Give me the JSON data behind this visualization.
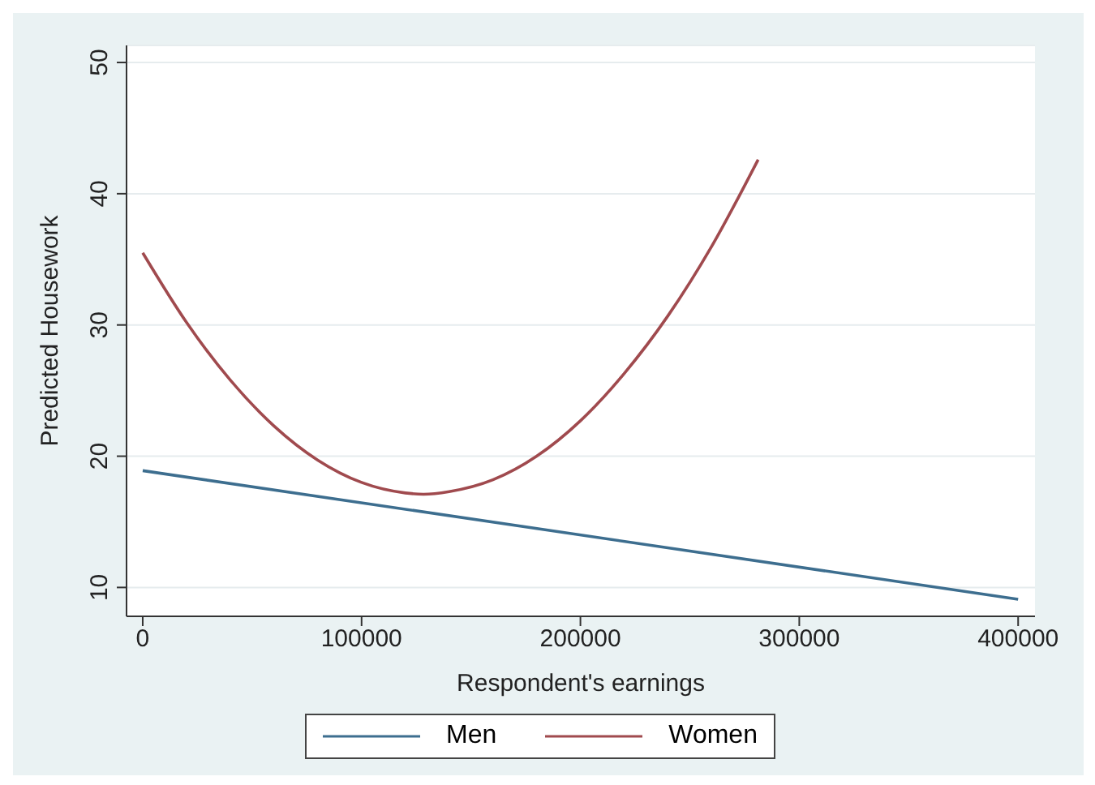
{
  "chart_data": {
    "type": "line",
    "xlabel": "Respondent's earnings",
    "ylabel": "Predicted Housework",
    "xlim": [
      -7400,
      407700
    ],
    "ylim": [
      7.8,
      51.3
    ],
    "xticks": [
      0,
      100000,
      200000,
      300000,
      400000
    ],
    "yticks": [
      10,
      20,
      30,
      40,
      50
    ],
    "grid": "y",
    "legend": "bottom",
    "marker": "none",
    "line_style": "solid",
    "series": [
      {
        "name": "Men",
        "color": "#3d6e8f",
        "x": [
          0,
          400000
        ],
        "values": [
          18.9,
          9.1
        ]
      },
      {
        "name": "Women",
        "color": "#a04a4e",
        "x": [
          0,
          20000,
          40000,
          60000,
          80000,
          100000,
          120000,
          128300,
          140000,
          160000,
          180000,
          200000,
          220000,
          240000,
          260000,
          281200
        ],
        "values": [
          35.5,
          30.2,
          25.8,
          22.3,
          19.7,
          18.0,
          17.2,
          17.1,
          17.3,
          18.2,
          20.0,
          22.7,
          26.3,
          30.7,
          36.0,
          42.6
        ]
      }
    ]
  }
}
